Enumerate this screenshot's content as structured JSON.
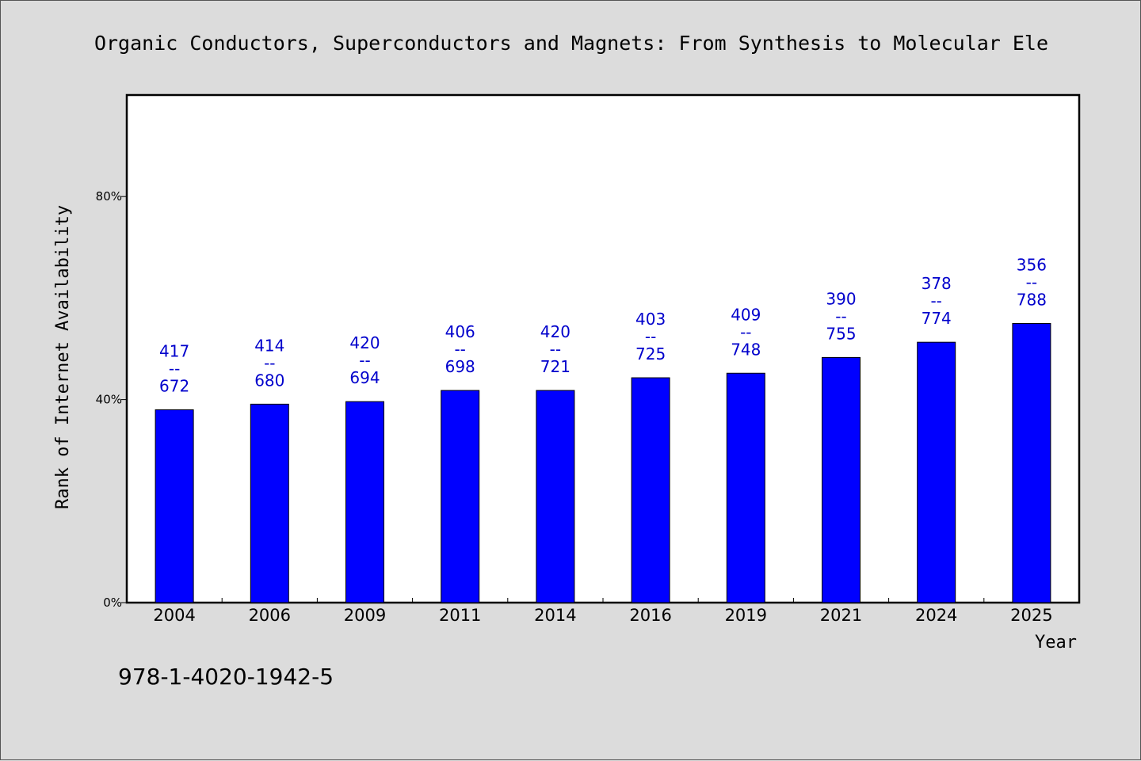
{
  "chart_data": {
    "type": "bar",
    "title": "Organic Conductors, Superconductors and Magnets: From Synthesis to Molecular Ele",
    "xlabel": "Year",
    "ylabel": "Rank of Internet Availability",
    "ylim": [
      0,
      100
    ],
    "yticks": [
      "0%",
      "40%",
      "80%"
    ],
    "ytick_values": [
      0,
      40,
      80
    ],
    "categories": [
      "2004",
      "2006",
      "2009",
      "2011",
      "2014",
      "2016",
      "2019",
      "2021",
      "2024",
      "2025"
    ],
    "values": [
      38.0,
      39.1,
      39.6,
      41.8,
      41.8,
      44.3,
      45.2,
      48.3,
      51.3,
      55.0
    ],
    "labels_top": [
      "417",
      "414",
      "420",
      "406",
      "420",
      "403",
      "409",
      "390",
      "378",
      "356"
    ],
    "labels_sep": [
      "--",
      "--",
      "--",
      "--",
      "--",
      "--",
      "--",
      "--",
      "--",
      "--"
    ],
    "labels_bottom": [
      "672",
      "680",
      "694",
      "698",
      "721",
      "725",
      "748",
      "755",
      "774",
      "788"
    ],
    "grid": false,
    "colors": {
      "bar": "#0000ff",
      "bar_stroke": "#000000",
      "data_label": "#0000cc",
      "background": "#dcdcdc",
      "plot_background": "#ffffff"
    }
  },
  "footnote": "978-1-4020-1942-5"
}
